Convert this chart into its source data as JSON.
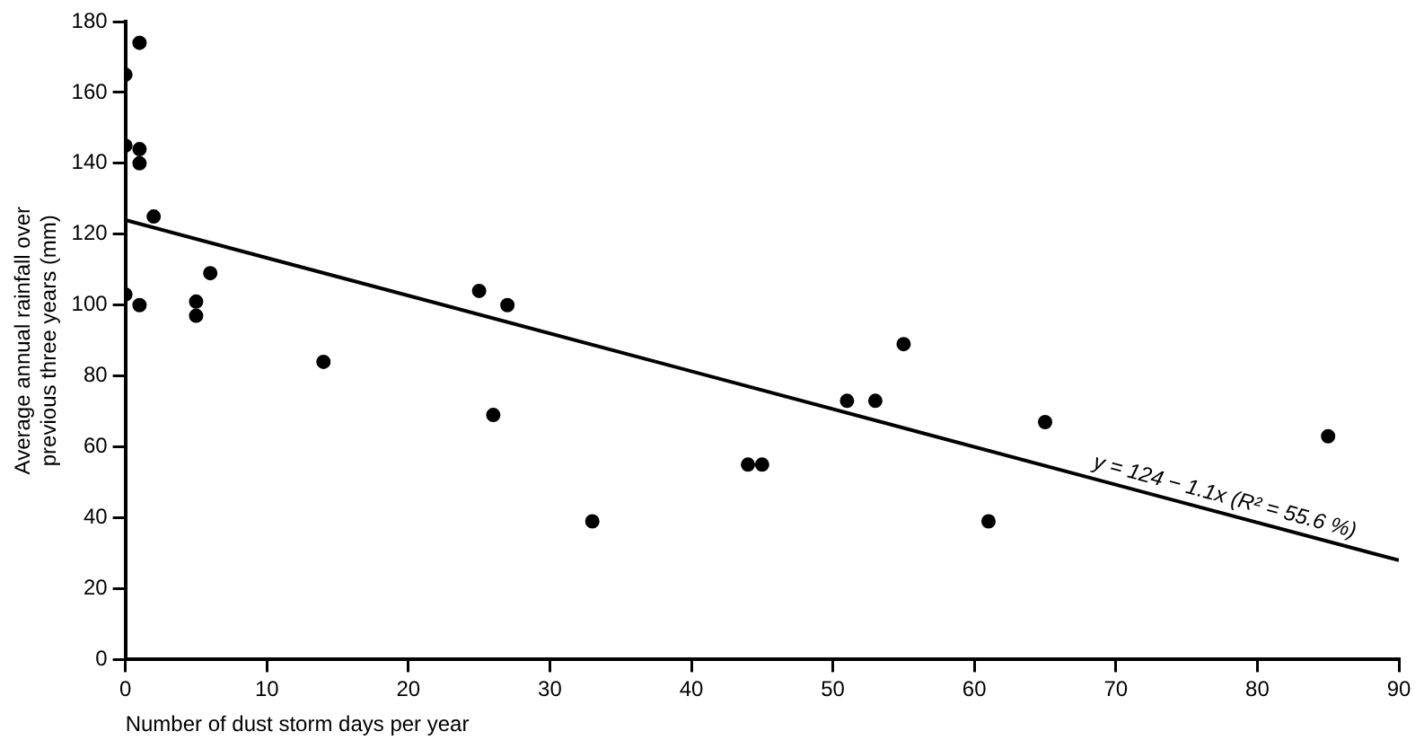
{
  "chart_data": {
    "type": "scatter",
    "xlabel": "Number of dust storm days per year",
    "ylabel": "Average annual rainfall over\nprevious three years (mm)",
    "xlim": [
      0,
      90
    ],
    "xticks": [
      0,
      10,
      20,
      30,
      40,
      50,
      60,
      70,
      80,
      90
    ],
    "ylim": [
      0,
      180
    ],
    "yticks": [
      0,
      20,
      40,
      60,
      80,
      100,
      120,
      140,
      160,
      180
    ],
    "grid": false,
    "legend": false,
    "marker": "circle",
    "series": [
      {
        "color": "#000000",
        "x": [
          0,
          1,
          0,
          1,
          1,
          2,
          0,
          1,
          5,
          5,
          6,
          14,
          25,
          26,
          27,
          33,
          44,
          45,
          51,
          53,
          55,
          61,
          65,
          85
        ],
        "values": [
          165,
          174,
          145,
          144,
          140,
          125,
          103,
          100,
          101,
          97,
          109,
          84,
          104,
          69,
          100,
          39,
          55,
          55,
          73,
          73,
          89,
          39,
          67,
          63
        ]
      },
      {
        "type": "line",
        "color": "#000000",
        "x": [
          0,
          90
        ],
        "values": [
          124,
          28
        ],
        "marker": "none",
        "line_style": "solid"
      }
    ],
    "annotations": [
      "y = 124 − 1.1x (R² = 55.6 %)"
    ]
  }
}
